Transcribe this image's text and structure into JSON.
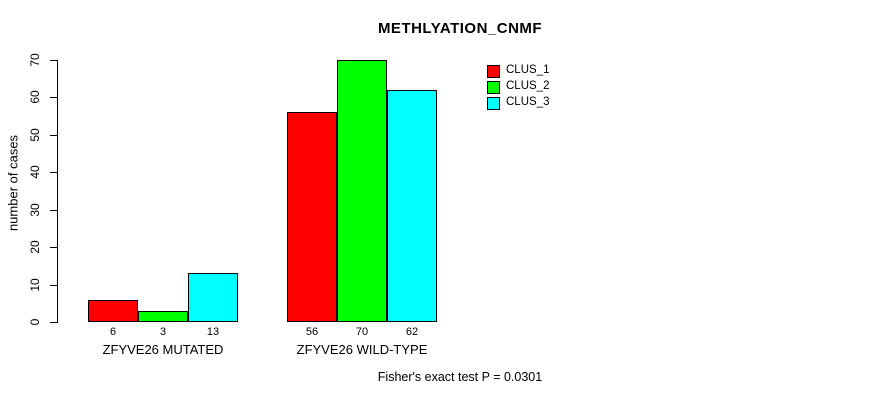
{
  "chart_data": {
    "type": "bar",
    "title": "METHLYATION_CNMF",
    "ylabel": "number of cases",
    "xlabel": "",
    "ylim": [
      0,
      70
    ],
    "yticks": [
      0,
      10,
      20,
      30,
      40,
      50,
      60,
      70
    ],
    "grid": false,
    "legend_position": "top-right-inside",
    "categories": [
      "ZFYVE26 MUTATED",
      "ZFYVE26 WILD-TYPE"
    ],
    "series": [
      {
        "name": "CLUS_1",
        "color": "#FF0000",
        "values": [
          6,
          56
        ]
      },
      {
        "name": "CLUS_2",
        "color": "#00FF00",
        "values": [
          3,
          70
        ]
      },
      {
        "name": "CLUS_3",
        "color": "#00FFFF",
        "values": [
          13,
          62
        ]
      }
    ],
    "bar_value_labels_shown": true,
    "annotation": "Fisher's exact test P = 0.0301"
  },
  "colors": {
    "background": "#FFFFFF",
    "axis": "#000000",
    "bar_border": "#000000",
    "text": "#000000"
  }
}
